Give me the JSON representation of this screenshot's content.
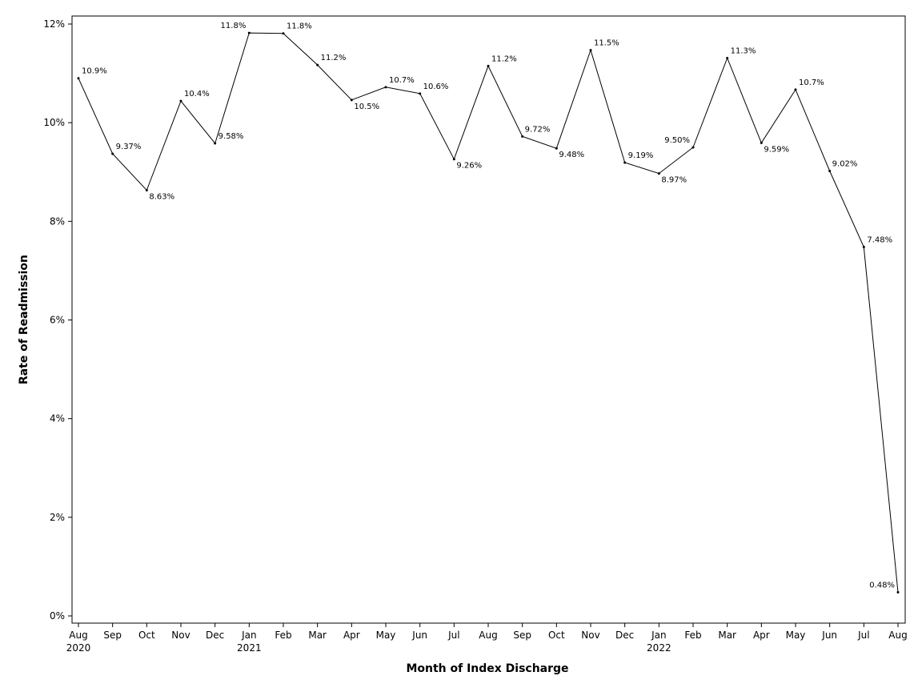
{
  "chart_data": {
    "type": "line",
    "title": "",
    "xlabel": "Month of Index Discharge",
    "ylabel": "Rate of Readmission",
    "ylim": [
      0,
      12
    ],
    "yticks": [
      0,
      2,
      4,
      6,
      8,
      10,
      12
    ],
    "ytick_labels": [
      "0%",
      "2%",
      "4%",
      "6%",
      "8%",
      "10%",
      "12%"
    ],
    "categories": [
      "Aug",
      "Sep",
      "Oct",
      "Nov",
      "Dec",
      "Jan",
      "Feb",
      "Mar",
      "Apr",
      "May",
      "Jun",
      "Jul",
      "Aug",
      "Sep",
      "Oct",
      "Nov",
      "Dec",
      "Jan",
      "Feb",
      "Mar",
      "Apr",
      "May",
      "Jun",
      "Jul",
      "Aug"
    ],
    "year_labels": [
      "2020",
      "",
      "",
      "",
      "",
      "2021",
      "",
      "",
      "",
      "",
      "",
      "",
      "",
      "",
      "",
      "",
      "",
      "2022",
      "",
      "",
      "",
      "",
      "",
      "",
      ""
    ],
    "series": [
      {
        "name": "Rate of Readmission",
        "values": [
          10.9,
          9.37,
          8.63,
          10.44,
          9.58,
          11.82,
          11.81,
          11.17,
          10.46,
          10.72,
          10.59,
          9.26,
          11.15,
          9.72,
          9.48,
          11.47,
          9.19,
          8.97,
          9.5,
          11.31,
          9.59,
          10.67,
          9.02,
          7.48,
          0.48
        ],
        "labels": [
          "10.9%",
          "9.37%",
          "8.63%",
          "10.4%",
          "9.58%",
          "11.8%",
          "11.8%",
          "11.2%",
          "10.5%",
          "10.7%",
          "10.6%",
          "9.26%",
          "11.2%",
          "9.72%",
          "9.48%",
          "11.5%",
          "9.19%",
          "8.97%",
          "9.50%",
          "11.3%",
          "9.59%",
          "10.7%",
          "9.02%",
          "7.48%",
          "0.48%"
        ],
        "label_positions": [
          "right",
          "right",
          "below",
          "right",
          "right",
          "left",
          "right",
          "right",
          "below",
          "right",
          "right",
          "below",
          "right",
          "above",
          "below",
          "right",
          "right",
          "below",
          "left",
          "right",
          "below",
          "right",
          "above",
          "right",
          "left"
        ]
      }
    ],
    "grid": false,
    "legend": "none"
  }
}
